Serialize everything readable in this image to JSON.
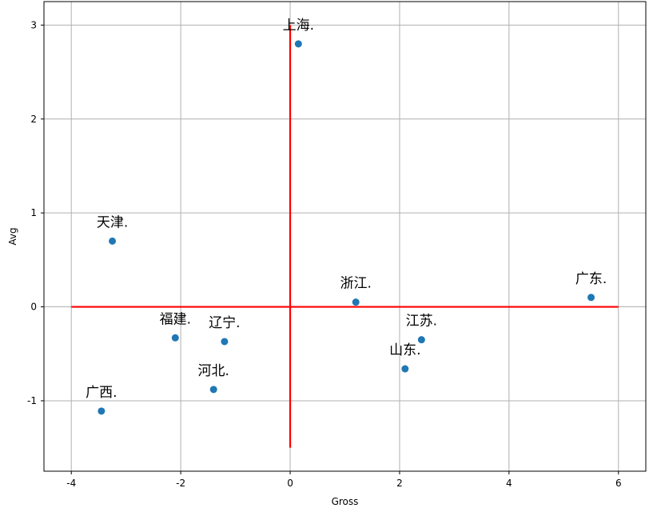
{
  "chart_data": {
    "type": "scatter",
    "title": "",
    "xlabel": "Gross",
    "ylabel": "Avg",
    "xlim": [
      -4.5,
      6.5
    ],
    "ylim": [
      -1.75,
      3.25
    ],
    "xticks": [
      -4,
      -2,
      0,
      2,
      4,
      6
    ],
    "yticks": [
      -1,
      0,
      1,
      2,
      3
    ],
    "xtick_labels": [
      "-4",
      "-2",
      "0",
      "2",
      "4",
      "6"
    ],
    "ytick_labels": [
      "-1",
      "0",
      "1",
      "2",
      "3"
    ],
    "grid": true,
    "point_color": "#1f77b4",
    "reference_line_color": "#ff0000",
    "reference_lines": {
      "horizontal": {
        "y": 0,
        "x_from": -4,
        "x_to": 6
      },
      "vertical": {
        "x": 0,
        "y_from": -1.5,
        "y_to": 3
      }
    },
    "points": [
      {
        "label": "上海.",
        "x": 0.15,
        "y": 2.8
      },
      {
        "label": "天津.",
        "x": -3.25,
        "y": 0.7
      },
      {
        "label": "浙江.",
        "x": 1.2,
        "y": 0.05
      },
      {
        "label": "广东.",
        "x": 5.5,
        "y": 0.1
      },
      {
        "label": "福建.",
        "x": -2.1,
        "y": -0.33
      },
      {
        "label": "辽宁.",
        "x": -1.2,
        "y": -0.37
      },
      {
        "label": "江苏.",
        "x": 2.4,
        "y": -0.35
      },
      {
        "label": "山东.",
        "x": 2.1,
        "y": -0.66
      },
      {
        "label": "河北.",
        "x": -1.4,
        "y": -0.88
      },
      {
        "label": "广西.",
        "x": -3.45,
        "y": -1.11
      }
    ]
  }
}
